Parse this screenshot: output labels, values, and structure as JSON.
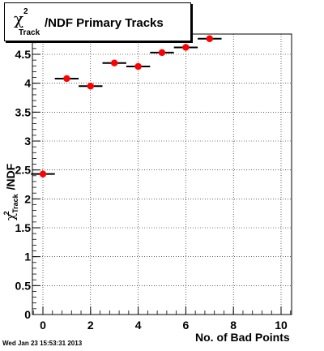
{
  "title": {
    "symbol": "χ",
    "superscript": "2",
    "subscript": "Track",
    "text": "/NDF Primary Tracks"
  },
  "axes": {
    "ylabel_symbol": "χ",
    "ylabel_sub": "Track",
    "ylabel_sup": "2",
    "ylabel_rest": "/NDF",
    "xlabel": "No. of Bad Points"
  },
  "timestamp": "Wed Jan 23 15:53:31 2013",
  "chart_data": {
    "type": "scatter",
    "xlabel": "No. of Bad Points",
    "ylabel": "χ²Track/NDF",
    "xlim": [
      -0.5,
      10.5
    ],
    "ylim": [
      0,
      4.8
    ],
    "x_ticks": [
      0,
      2,
      4,
      6,
      8,
      10
    ],
    "y_ticks": [
      0,
      0.5,
      1,
      1.5,
      2,
      2.5,
      3,
      3.5,
      4,
      4.5
    ],
    "y_tick_labels": [
      "0",
      "0.5",
      "1",
      "1.5",
      "2",
      "2.5",
      "3",
      "3.5",
      "4",
      "4.5"
    ],
    "grid": true,
    "marker_color": "#ff0000",
    "points": [
      {
        "x": 0,
        "y": 2.43,
        "xerr": 0.5,
        "yerr": 0.05
      },
      {
        "x": 1,
        "y": 4.08,
        "xerr": 0.5,
        "yerr": 0.02
      },
      {
        "x": 2,
        "y": 3.95,
        "xerr": 0.5,
        "yerr": 0.04
      },
      {
        "x": 3,
        "y": 4.35,
        "xerr": 0.5,
        "yerr": 0.01
      },
      {
        "x": 4,
        "y": 4.29,
        "xerr": 0.5,
        "yerr": 0.01
      },
      {
        "x": 5,
        "y": 4.53,
        "xerr": 0.5,
        "yerr": 0.01
      },
      {
        "x": 6,
        "y": 4.62,
        "xerr": 0.5,
        "yerr": 0.01
      },
      {
        "x": 7,
        "y": 4.77,
        "xerr": 0.5,
        "yerr": 0.01
      }
    ]
  }
}
